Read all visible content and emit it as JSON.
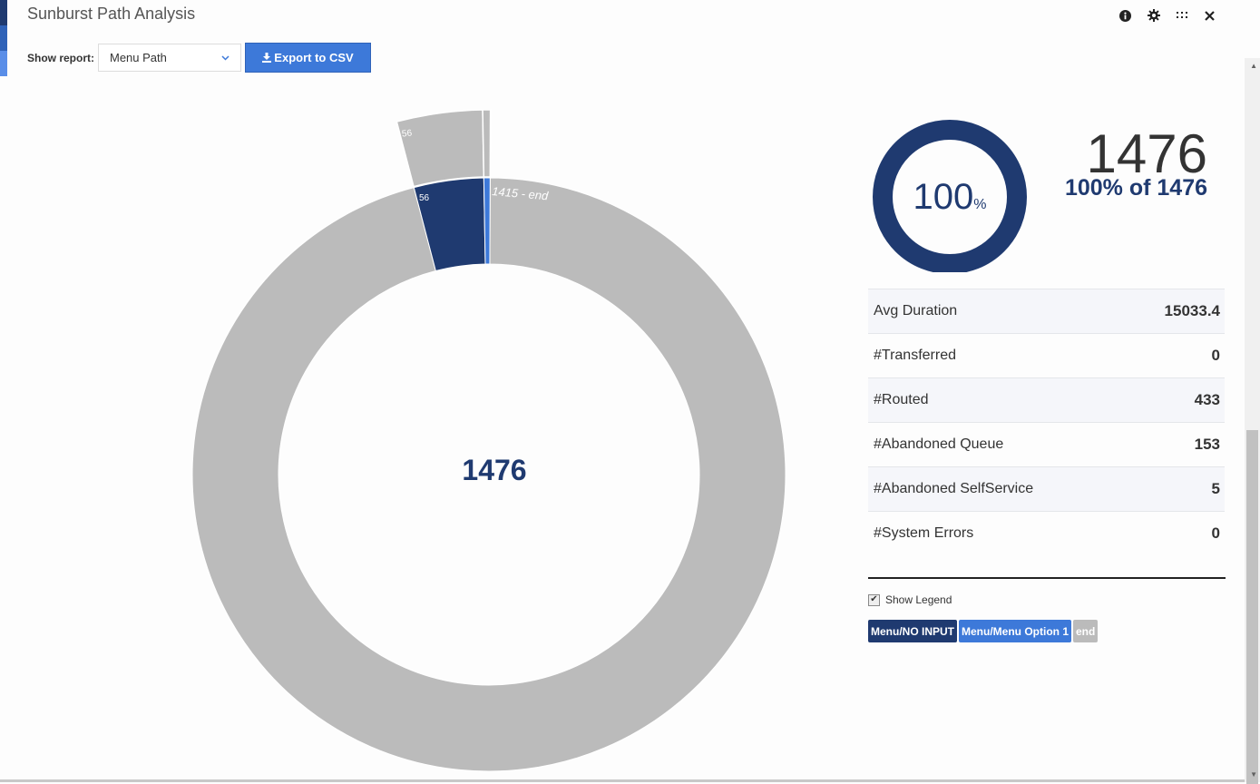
{
  "window": {
    "title": "Sunburst Path Analysis"
  },
  "header_icons": [
    "info-icon",
    "gear-icon",
    "drag-handle-icon",
    "close-icon"
  ],
  "toolbar": {
    "show_report_label": "Show report:",
    "report_select_value": "Menu Path",
    "export_label": "Export to CSV"
  },
  "sunburst": {
    "center_value": "1476",
    "inner_segments": [
      {
        "label": "56",
        "value": 56,
        "color": "#1f3a70"
      },
      {
        "label": "",
        "value": 5,
        "color": "#3d79d9"
      },
      {
        "label": "1415 - end",
        "value": 1415,
        "color": "#bbbbbb"
      }
    ],
    "outer_segments": [
      {
        "label": "56",
        "value": 56,
        "color": "#bbbbbb"
      },
      {
        "label": "",
        "value": 5,
        "color": "#bbbbbb"
      }
    ]
  },
  "summary": {
    "percent": "100",
    "percent_unit": "%",
    "total": "1476",
    "percent_of": "100% of 1476"
  },
  "stats": [
    {
      "label": "Avg Duration",
      "value": "15033.4"
    },
    {
      "label": "#Transferred",
      "value": "0"
    },
    {
      "label": "#Routed",
      "value": "433"
    },
    {
      "label": "#Abandoned Queue",
      "value": "153"
    },
    {
      "label": "#Abandoned SelfService",
      "value": "5"
    },
    {
      "label": "#System Errors",
      "value": "0"
    }
  ],
  "legend": {
    "show_legend_label": "Show Legend",
    "checked": true,
    "items": [
      {
        "label": "Menu/NO INPUT",
        "color": "#1f3a70"
      },
      {
        "label": "Menu/Menu Option 1",
        "color": "#3d79d9"
      },
      {
        "label": "end",
        "color": "#bbbbbb"
      }
    ]
  },
  "colors": {
    "accent": "#3d79d9",
    "primary_dark": "#1f3a70",
    "neutral": "#bbbbbb"
  }
}
